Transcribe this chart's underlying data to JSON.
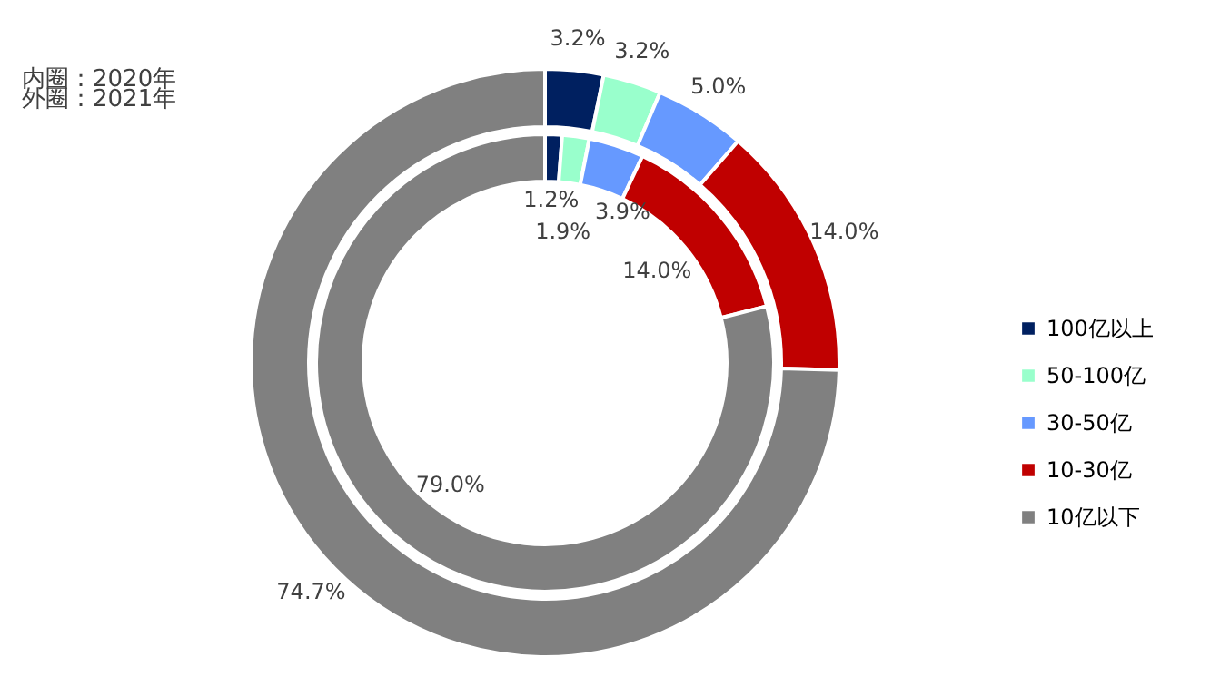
{
  "chart_data": {
    "type": "donut",
    "categories": [
      "100亿以上",
      "50-100亿",
      "30-50亿",
      "10-30亿",
      "10亿以下"
    ],
    "colors": [
      "#002060",
      "#99ffcc",
      "#6699ff",
      "#c00000",
      "#808080"
    ],
    "series": [
      {
        "values": [
          1.2,
          1.9,
          3.9,
          14.0,
          79.0
        ],
        "value_labels": [
          "1.2%",
          "1.9%",
          "3.9%",
          "14.0%",
          "79.0%"
        ]
      },
      {
        "values": [
          3.2,
          3.2,
          5.0,
          14.0,
          74.7
        ],
        "value_labels": [
          "3.2%",
          "3.2%",
          "5.0%",
          "14.0%",
          "74.7%"
        ]
      }
    ],
    "legend": "right",
    "annotations": [
      "内圈：2020年",
      "外圈：2021年"
    ]
  }
}
